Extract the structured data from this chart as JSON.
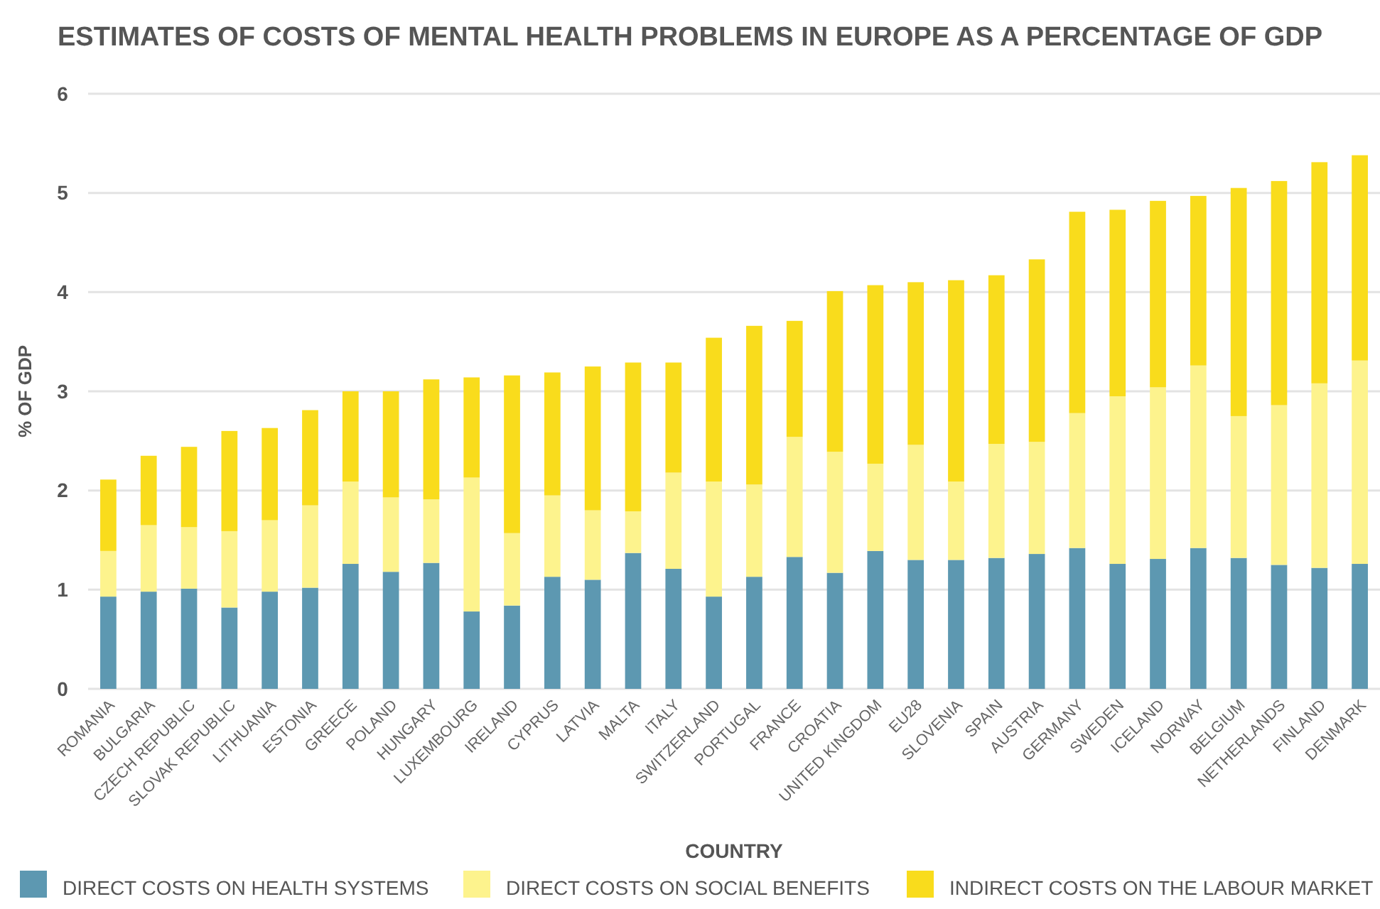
{
  "chart_data": {
    "type": "bar",
    "stacked": true,
    "title": "ESTIMATES OF COSTS OF MENTAL HEALTH PROBLEMS IN EUROPE AS A PERCENTAGE OF GDP",
    "xlabel": "COUNTRY",
    "ylabel": "% OF GDP",
    "categories": [
      "ROMANIA",
      "BULGARIA",
      "CZECH REPUBLIC",
      "SLOVAK REPUBLIC",
      "LITHUANIA",
      "ESTONIA",
      "GREECE",
      "POLAND",
      "HUNGARY",
      "LUXEMBOURG",
      "IRELAND",
      "CYPRUS",
      "LATVIA",
      "MALTA",
      "ITALY",
      "SWITZERLAND",
      "PORTUGAL",
      "FRANCE",
      "CROATIA",
      "UNITED KINGDOM",
      "EU28",
      "SLOVENIA",
      "SPAIN",
      "AUSTRIA",
      "GERMANY",
      "SWEDEN",
      "ICELAND",
      "NORWAY",
      "BELGIUM",
      "NETHERLANDS",
      "FINLAND",
      "DENMARK"
    ],
    "series": [
      {
        "name": "DIRECT COSTS ON HEALTH SYSTEMS",
        "color": "#5d98b1",
        "values": [
          0.93,
          0.98,
          1.01,
          0.82,
          0.98,
          1.02,
          1.26,
          1.18,
          1.27,
          0.78,
          0.84,
          1.13,
          1.1,
          1.37,
          1.21,
          0.93,
          1.13,
          1.33,
          1.17,
          1.39,
          1.3,
          1.3,
          1.32,
          1.36,
          1.42,
          1.26,
          1.31,
          1.42,
          1.32,
          1.25,
          1.22,
          1.26
        ]
      },
      {
        "name": "DIRECT COSTS ON SOCIAL BENEFITS",
        "color": "#fdf38d",
        "values": [
          0.46,
          0.67,
          0.62,
          0.77,
          0.72,
          0.83,
          0.83,
          0.75,
          0.64,
          1.35,
          0.73,
          0.82,
          0.7,
          0.42,
          0.97,
          1.16,
          0.93,
          1.21,
          1.22,
          0.88,
          1.16,
          0.79,
          1.15,
          1.13,
          1.36,
          1.69,
          1.73,
          1.84,
          1.43,
          1.61,
          1.86,
          2.05
        ]
      },
      {
        "name": "INDIRECT COSTS ON THE LABOUR MARKET",
        "color": "#f9dc1c",
        "values": [
          0.72,
          0.7,
          0.81,
          1.01,
          0.93,
          0.96,
          0.91,
          1.07,
          1.21,
          1.01,
          1.59,
          1.24,
          1.45,
          1.5,
          1.11,
          1.45,
          1.6,
          1.17,
          1.62,
          1.8,
          1.64,
          2.03,
          1.7,
          1.84,
          2.03,
          1.88,
          1.88,
          1.71,
          2.3,
          2.26,
          2.23,
          2.07
        ]
      }
    ],
    "ylim": [
      0,
      6
    ],
    "yticks": [
      0,
      1,
      2,
      3,
      4,
      5,
      6
    ],
    "grid": "y",
    "legend": "bottom"
  }
}
